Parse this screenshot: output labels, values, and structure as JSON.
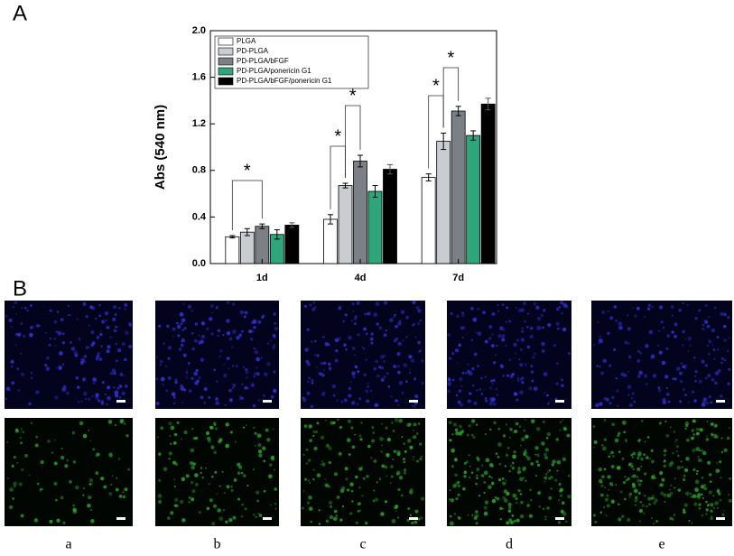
{
  "panel_labels": [
    "A",
    "B"
  ],
  "chart_data": {
    "type": "bar",
    "ylabel": "Abs (540 nm)",
    "categories": [
      "1d",
      "4d",
      "7d"
    ],
    "series": [
      {
        "name": "PLGA",
        "color": "#ffffff",
        "values": [
          0.23,
          0.38,
          0.74
        ],
        "errors": [
          0.01,
          0.04,
          0.03
        ]
      },
      {
        "name": "PD-PLGA",
        "color": "#c9cdd1",
        "values": [
          0.27,
          0.67,
          1.05
        ],
        "errors": [
          0.03,
          0.02,
          0.07
        ]
      },
      {
        "name": "PD-PLGA/bFGF",
        "color": "#7b8087",
        "values": [
          0.32,
          0.88,
          1.31
        ],
        "errors": [
          0.02,
          0.05,
          0.04
        ]
      },
      {
        "name": "PD-PLGA/ponericin G1",
        "color": "#2ea57a",
        "values": [
          0.25,
          0.62,
          1.1
        ],
        "errors": [
          0.04,
          0.05,
          0.04
        ]
      },
      {
        "name": "PD-PLGA/bFGF/ponericin G1",
        "color": "#000000",
        "values": [
          0.33,
          0.81,
          1.37
        ],
        "errors": [
          0.02,
          0.04,
          0.05
        ]
      }
    ],
    "ylim": [
      0,
      2.0
    ],
    "yticks": [
      {
        "value": 0,
        "label": "0.0"
      },
      0.4,
      0.8,
      1.2,
      1.6,
      {
        "value": 2.0,
        "label": "2.0"
      }
    ],
    "annotations": [
      "*",
      "*",
      "*",
      "*",
      "*"
    ],
    "legend": "upper left"
  },
  "images": {
    "labels": [
      "a",
      "b",
      "c",
      "d",
      "e"
    ]
  }
}
